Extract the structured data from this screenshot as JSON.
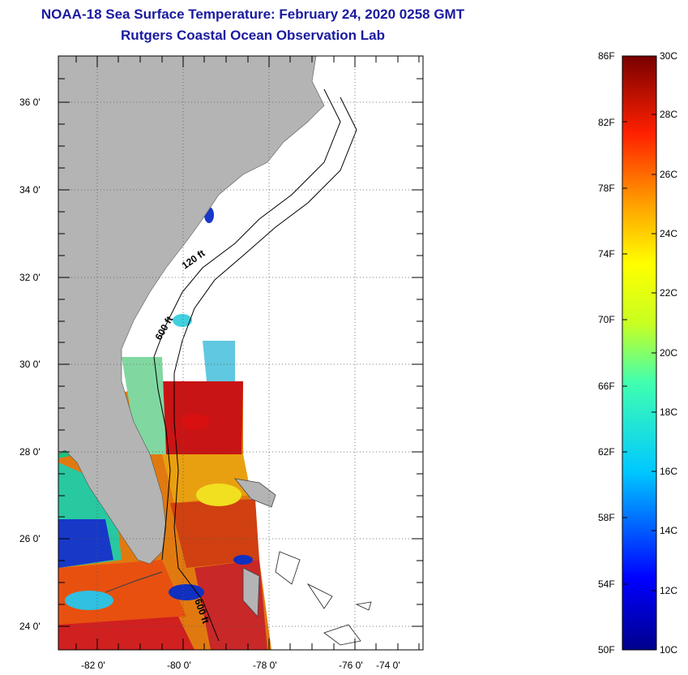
{
  "header": {
    "title": "NOAA-18 Sea Surface Temperature:  February 24, 2020 0258 GMT",
    "subtitle": "Rutgers Coastal Ocean Observation Lab"
  },
  "map": {
    "lat_labels": [
      "36 0'",
      "34 0'",
      "32 0'",
      "30 0'",
      "28 0'",
      "26 0'",
      "24 0'"
    ],
    "lon_labels": [
      "-82 0'",
      "-80 0'",
      "-78 0'",
      "-76 0'",
      "-74 0'"
    ],
    "contour_labels": [
      "120 ft",
      "600 ft",
      "600 ft"
    ]
  },
  "colorbar": {
    "fahrenheit_labels": [
      "86F",
      "82F",
      "78F",
      "74F",
      "70F",
      "66F",
      "62F",
      "58F",
      "54F",
      "50F"
    ],
    "celsius_labels": [
      "30C",
      "28C",
      "26C",
      "24C",
      "22C",
      "20C",
      "18C",
      "16C",
      "14C",
      "12C",
      "10C"
    ]
  },
  "colors": {
    "title": "#1a1aa0",
    "land": "#b4b4b4",
    "ocean_nodata": "#ffffff",
    "warm": "#d81010",
    "cool": "#1030c0"
  }
}
